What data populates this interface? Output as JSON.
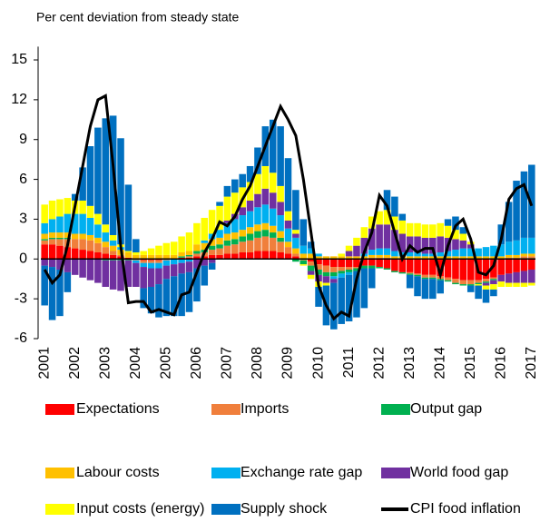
{
  "chart_data": {
    "type": "bar",
    "stacked": true,
    "subtitle": "Per cent deviation from steady state",
    "categories": [
      "2001",
      null,
      null,
      null,
      "2002",
      null,
      null,
      null,
      "2003",
      null,
      null,
      null,
      "2004",
      null,
      null,
      null,
      "2005",
      null,
      null,
      null,
      "2006",
      null,
      null,
      null,
      "2007",
      null,
      null,
      null,
      "2008",
      null,
      null,
      null,
      "2009",
      null,
      null,
      null,
      "2010",
      null,
      null,
      null,
      "2011",
      null,
      null,
      null,
      "2012",
      null,
      null,
      null,
      "2013",
      null,
      null,
      null,
      "2014",
      null,
      null,
      null,
      "2015",
      null,
      null,
      null,
      "2016",
      null,
      null,
      null,
      "2017"
    ],
    "ylim": [
      -6,
      16
    ],
    "yticks": [
      -6,
      -3,
      0,
      3,
      6,
      9,
      12,
      15
    ],
    "series": [
      {
        "name": "Expectations",
        "color": "#ff0000",
        "values": [
          1.1,
          1.1,
          1.0,
          0.9,
          0.8,
          0.7,
          0.6,
          0.5,
          0.4,
          0.3,
          0.2,
          0.1,
          0,
          -0.1,
          -0.1,
          -0.1,
          0,
          0,
          0.1,
          0.1,
          0.2,
          0.2,
          0.3,
          0.3,
          0.4,
          0.4,
          0.5,
          0.5,
          0.6,
          0.6,
          0.6,
          0.5,
          0.4,
          0.2,
          0,
          -0.2,
          -0.4,
          -0.5,
          -0.6,
          -0.6,
          -0.6,
          -0.6,
          -0.5,
          -0.5,
          -0.6,
          -0.7,
          -0.9,
          -1.0,
          -1.0,
          -1.1,
          -1.2,
          -1.2,
          -1.3,
          -1.4,
          -1.5,
          -1.6,
          -1.6,
          -1.6,
          -1.5,
          -1.4,
          -1.2,
          -1.1,
          -1.0,
          -0.9,
          -0.8
        ]
      },
      {
        "name": "Imports",
        "color": "#f07f3c",
        "values": [
          0.3,
          0.4,
          0.5,
          0.6,
          0.7,
          0.8,
          0.8,
          0.7,
          0.5,
          0.3,
          0.1,
          0,
          -0.1,
          -0.2,
          -0.2,
          -0.2,
          -0.1,
          0,
          0,
          0.1,
          0.2,
          0.3,
          0.4,
          0.5,
          0.6,
          0.7,
          0.8,
          0.9,
          1.0,
          1.1,
          1.0,
          0.8,
          0.5,
          0.2,
          -0.1,
          -0.3,
          -0.4,
          -0.5,
          -0.4,
          -0.3,
          -0.2,
          -0.1,
          0,
          0.1,
          0.1,
          0.1,
          0,
          0,
          -0.1,
          -0.1,
          -0.2,
          -0.2,
          -0.2,
          -0.2,
          -0.3,
          -0.3,
          -0.3,
          -0.2,
          -0.2,
          -0.1,
          0,
          0.1,
          0.1,
          0.2,
          0.2
        ]
      },
      {
        "name": "Output gap",
        "color": "#00b050",
        "values": [
          0.1,
          0.1,
          0.1,
          0.1,
          0,
          0,
          0,
          0,
          -0.1,
          -0.1,
          -0.1,
          -0.1,
          0,
          0,
          0,
          0,
          0,
          0,
          0.1,
          0.1,
          0.2,
          0.2,
          0.3,
          0.3,
          0.4,
          0.4,
          0.4,
          0.5,
          0.5,
          0.5,
          0.4,
          0.3,
          0,
          -0.2,
          -0.3,
          -0.4,
          -0.4,
          -0.3,
          -0.3,
          -0.2,
          -0.2,
          -0.2,
          -0.2,
          -0.2,
          -0.1,
          -0.1,
          -0.1,
          -0.1,
          -0.1,
          -0.1,
          -0.1,
          -0.1,
          -0.1,
          -0.1,
          -0.1,
          -0.1,
          -0.1,
          -0.1,
          -0.1,
          -0.1,
          0,
          0,
          0,
          0,
          0
        ]
      },
      {
        "name": "Labour costs",
        "color": "#ffc000",
        "values": [
          0.4,
          0.4,
          0.4,
          0.4,
          0.4,
          0.4,
          0.4,
          0.4,
          0.4,
          0.4,
          0.4,
          0.4,
          0.3,
          0.3,
          0.3,
          0.3,
          0.3,
          0.3,
          0.3,
          0.3,
          0.5,
          0.5,
          0.5,
          0.5,
          0.5,
          0.5,
          0.5,
          0.5,
          0.5,
          0.5,
          0.5,
          0.5,
          0.4,
          0.4,
          0.4,
          0.4,
          0.2,
          0.2,
          0.2,
          0.2,
          0.2,
          0.2,
          0.2,
          0.2,
          0.2,
          0.2,
          0.2,
          0.2,
          0.2,
          0.2,
          0.2,
          0.2,
          0.2,
          0.2,
          0.2,
          0.2,
          0.2,
          0.2,
          0.2,
          0.2,
          0.2,
          0.2,
          0.2,
          0.2,
          0.2
        ]
      },
      {
        "name": "Exchange rate gap",
        "color": "#00b0f0",
        "values": [
          0.8,
          1.0,
          1.2,
          1.4,
          1.5,
          1.5,
          1.3,
          1.0,
          0.7,
          0.4,
          0.2,
          0,
          -0.2,
          -0.3,
          -0.4,
          -0.4,
          -0.4,
          -0.4,
          -0.3,
          -0.2,
          0,
          0.2,
          0.4,
          0.6,
          0.8,
          1.0,
          1.1,
          1.2,
          1.3,
          1.4,
          1.3,
          1.2,
          1.0,
          0.8,
          0.6,
          0.4,
          0.2,
          0,
          -0.2,
          -0.3,
          -0.2,
          0,
          0.2,
          0.4,
          0.5,
          0.5,
          0.4,
          0.3,
          0.3,
          0.3,
          0.2,
          0.2,
          0.3,
          0.4,
          0.5,
          0.6,
          0.6,
          0.6,
          0.7,
          0.8,
          0.9,
          1.0,
          1.1,
          1.2,
          1.2
        ]
      },
      {
        "name": "World food gap",
        "color": "#7030a0",
        "values": [
          -0.5,
          -0.6,
          -0.8,
          -1.0,
          -1.2,
          -1.4,
          -1.6,
          -1.8,
          -2.0,
          -2.2,
          -2.3,
          -2.0,
          -1.8,
          -1.6,
          -1.4,
          -1.2,
          -1.0,
          -0.9,
          -0.8,
          -0.8,
          -0.7,
          -0.5,
          -0.3,
          0,
          0.2,
          0.4,
          0.6,
          0.8,
          1.0,
          1.2,
          1.2,
          1.0,
          0.6,
          0.3,
          0,
          -0.3,
          -0.5,
          -0.5,
          -0.3,
          0,
          0.4,
          0.8,
          1.2,
          1.6,
          1.8,
          1.8,
          1.6,
          1.4,
          1.2,
          1.2,
          1.2,
          1.2,
          1.2,
          1.0,
          0.8,
          0.6,
          0.3,
          0,
          -0.2,
          -0.3,
          -0.5,
          -0.7,
          -0.8,
          -0.9,
          -1.0
        ]
      },
      {
        "name": "Input costs (energy)",
        "color": "#ffff00",
        "values": [
          1.4,
          1.4,
          1.3,
          1.2,
          1.0,
          1.0,
          0.9,
          0.8,
          0.6,
          0.4,
          0.2,
          0.1,
          0.2,
          0.3,
          0.5,
          0.7,
          0.9,
          1.0,
          1.2,
          1.4,
          1.6,
          1.7,
          1.8,
          1.8,
          1.8,
          1.6,
          1.5,
          1.4,
          1.5,
          1.7,
          1.5,
          1.2,
          0.7,
          0.3,
          -0.1,
          -0.3,
          -0.4,
          -0.2,
          0,
          0.2,
          0.4,
          0.6,
          0.8,
          0.9,
          1.0,
          1.1,
          1.0,
          1.0,
          1.0,
          1.0,
          1.0,
          1.0,
          1.0,
          0.9,
          0.7,
          0.5,
          0.2,
          -0.1,
          -0.3,
          -0.4,
          -0.4,
          -0.3,
          -0.3,
          -0.3,
          -0.2
        ]
      },
      {
        "name": "Supply shock",
        "color": "#0070c0",
        "values": [
          -3.0,
          -4.0,
          -3.5,
          -1.5,
          0.5,
          2.5,
          4.5,
          6.5,
          8,
          9,
          8,
          5,
          1,
          -1.5,
          -2,
          -2.5,
          -2.8,
          -3,
          -3.2,
          -3,
          -2.5,
          -1.5,
          -0.5,
          0.3,
          0.8,
          1.0,
          1.0,
          1.2,
          2,
          3,
          4,
          4.5,
          4,
          3,
          2,
          0.5,
          -1.5,
          -3,
          -3.5,
          -3.5,
          -3.5,
          -3.5,
          -3,
          -1.5,
          0,
          1.5,
          1.5,
          0.5,
          -1,
          -1.5,
          -1.5,
          -1.5,
          -1,
          0.5,
          1,
          0.5,
          -0.5,
          -1,
          -1,
          -0.5,
          1.5,
          3,
          4.5,
          5,
          5.5
        ]
      }
    ],
    "line_series": {
      "name": "CPI food inflation",
      "color": "#000000",
      "values": [
        -0.8,
        -1.8,
        -1.2,
        1.0,
        4,
        7,
        10,
        12,
        12.3,
        7,
        1,
        -3.3,
        -3.2,
        -3.2,
        -4,
        -3.8,
        -4,
        -4.2,
        -2.7,
        -2.5,
        -1,
        0.5,
        1.5,
        2.8,
        2.5,
        3.2,
        4.5,
        5.5,
        7,
        8.5,
        10,
        11.5,
        10.5,
        9.3,
        6,
        2,
        -2,
        -3.5,
        -4.5,
        -4,
        -4.3,
        -1.5,
        0.5,
        2,
        4.8,
        4,
        2,
        0,
        1,
        0.5,
        0.8,
        0.8,
        -1.2,
        1,
        2.5,
        3,
        1.5,
        -1,
        -1.2,
        -0.5,
        1.5,
        4.5,
        5.3,
        5.6,
        4
      ]
    }
  }
}
